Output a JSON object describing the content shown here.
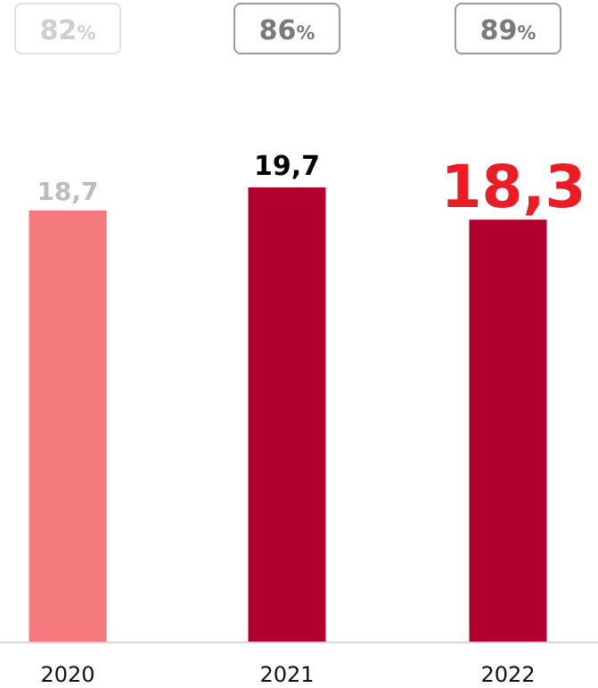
{
  "chart_data": {
    "type": "bar",
    "title": "",
    "xlabel": "",
    "ylabel": "",
    "ylim": [
      0,
      19.7
    ],
    "categories": [
      "2020",
      "2021",
      "2022"
    ],
    "values": [
      18.7,
      19.7,
      18.3
    ],
    "value_labels": [
      "18,7",
      "19,7",
      "18,3"
    ],
    "percent_badges": [
      {
        "number": "82",
        "sign": "%"
      },
      {
        "number": "86",
        "sign": "%"
      },
      {
        "number": "89",
        "sign": "%"
      }
    ],
    "colors": {
      "bars": [
        "#f47a7d",
        "#b1002e",
        "#b1002e"
      ],
      "value_labels": [
        "#b9bdc4",
        "#000000",
        "#ec1c24"
      ],
      "badge_text": [
        "#cfcfcf",
        "#7a7a7a",
        "#7a7a7a"
      ],
      "badge_border": [
        "#e2e2e2",
        "#9a9a9a",
        "#9a9a9a"
      ],
      "baseline": "#d9d9d9",
      "category_text": "#111111"
    },
    "grid": false,
    "legend": "none"
  }
}
